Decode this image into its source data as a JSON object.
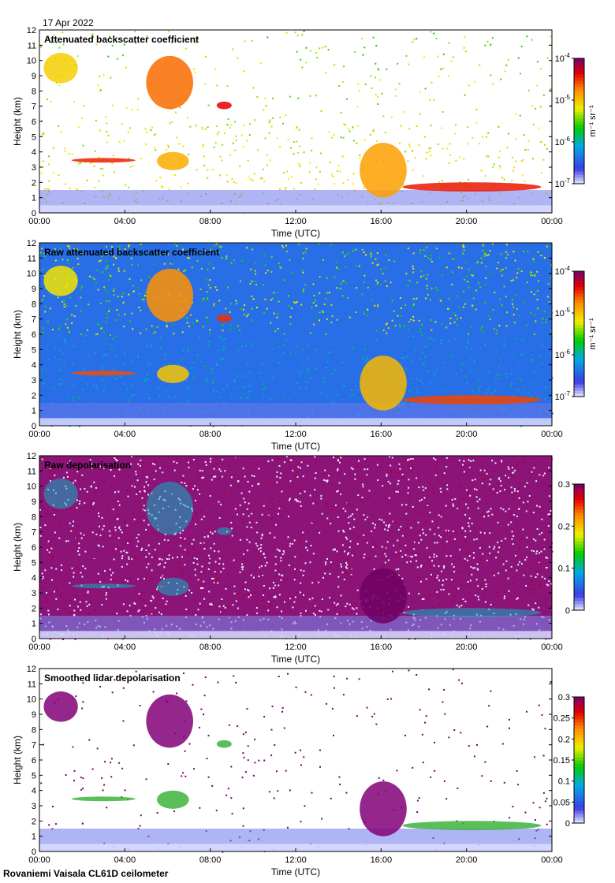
{
  "date_label": "17 Apr 2022",
  "footer_label": "Rovaniemi Vaisala CL61D ceilometer",
  "chart_data": [
    {
      "type": "heatmap",
      "title": "Attenuated backscatter coefficient",
      "xlabel": "Time (UTC)",
      "ylabel": "Height (km)",
      "xticks": [
        "00:00",
        "04:00",
        "08:00",
        "12:00",
        "16:00",
        "20:00",
        "00:00"
      ],
      "xlim_hours": [
        0,
        24
      ],
      "ylim_km": [
        0,
        12
      ],
      "yticks": [
        0,
        1,
        2,
        3,
        4,
        5,
        6,
        7,
        8,
        9,
        10,
        11,
        12
      ],
      "colorbar": {
        "scale": "log",
        "range": [
          1e-07,
          0.0001
        ],
        "ticks": [
          "10^-7",
          "10^-6",
          "10^-5",
          "10^-4"
        ],
        "unit": "m^-1 sr^-1"
      },
      "features": [
        {
          "name": "boundary layer",
          "t": [
            0,
            24
          ],
          "h": [
            0,
            1.6
          ]
        },
        {
          "name": "cloud layer",
          "t": [
            1.5,
            4.5
          ],
          "h": [
            3.3,
            3.6
          ]
        },
        {
          "name": "cloud",
          "t": [
            5.5,
            7
          ],
          "h": [
            2.8,
            4.0
          ]
        },
        {
          "name": "ice cloud",
          "t": [
            0.2,
            1.8
          ],
          "h": [
            8.5,
            10.5
          ]
        },
        {
          "name": "ice cloud",
          "t": [
            5,
            7.2
          ],
          "h": [
            6.8,
            10.3
          ]
        },
        {
          "name": "cloud layer",
          "t": [
            8.3,
            9
          ],
          "h": [
            6.8,
            7.3
          ]
        },
        {
          "name": "cloud",
          "t": [
            15,
            17.2
          ],
          "h": [
            1.0,
            4.6
          ]
        },
        {
          "name": "low cloud layer",
          "t": [
            17,
            23.5
          ],
          "h": [
            1.4,
            2.0
          ]
        }
      ]
    },
    {
      "type": "heatmap",
      "title": "Raw attenuated backscatter coefficient",
      "xlabel": "Time (UTC)",
      "ylabel": "Height (km)",
      "xticks": [
        "00:00",
        "04:00",
        "08:00",
        "12:00",
        "16:00",
        "20:00",
        "00:00"
      ],
      "xlim_hours": [
        0,
        24
      ],
      "ylim_km": [
        0,
        12
      ],
      "yticks": [
        0,
        1,
        2,
        3,
        4,
        5,
        6,
        7,
        8,
        9,
        10,
        11,
        12
      ],
      "colorbar": {
        "scale": "log",
        "range": [
          1e-07,
          0.0001
        ],
        "ticks": [
          "10^-7",
          "10^-6",
          "10^-5",
          "10^-4"
        ],
        "unit": "m^-1 sr^-1"
      }
    },
    {
      "type": "heatmap",
      "title": "Raw depolarisation",
      "xlabel": "Time (UTC)",
      "ylabel": "Height (km)",
      "xticks": [
        "00:00",
        "04:00",
        "08:00",
        "12:00",
        "16:00",
        "20:00",
        "00:00"
      ],
      "xlim_hours": [
        0,
        24
      ],
      "ylim_km": [
        0,
        12
      ],
      "yticks": [
        0,
        1,
        2,
        3,
        4,
        5,
        6,
        7,
        8,
        9,
        10,
        11,
        12
      ],
      "colorbar": {
        "scale": "linear",
        "range": [
          0,
          0.3
        ],
        "ticks": [
          "0",
          "0.1",
          "0.2",
          "0.3"
        ],
        "unit": ""
      }
    },
    {
      "type": "heatmap",
      "title": "Smoothed lidar depolarisation",
      "xlabel": "Time (UTC)",
      "ylabel": "Height (km)",
      "xticks": [
        "00:00",
        "04:00",
        "08:00",
        "12:00",
        "16:00",
        "20:00",
        "00:00"
      ],
      "xlim_hours": [
        0,
        24
      ],
      "ylim_km": [
        0,
        12
      ],
      "yticks": [
        0,
        1,
        2,
        3,
        4,
        5,
        6,
        7,
        8,
        9,
        10,
        11,
        12
      ],
      "colorbar": {
        "scale": "linear",
        "range": [
          0,
          0.3
        ],
        "ticks": [
          "0",
          "0.05",
          "0.1",
          "0.15",
          "0.2",
          "0.25",
          "0.3"
        ],
        "unit": ""
      }
    }
  ]
}
